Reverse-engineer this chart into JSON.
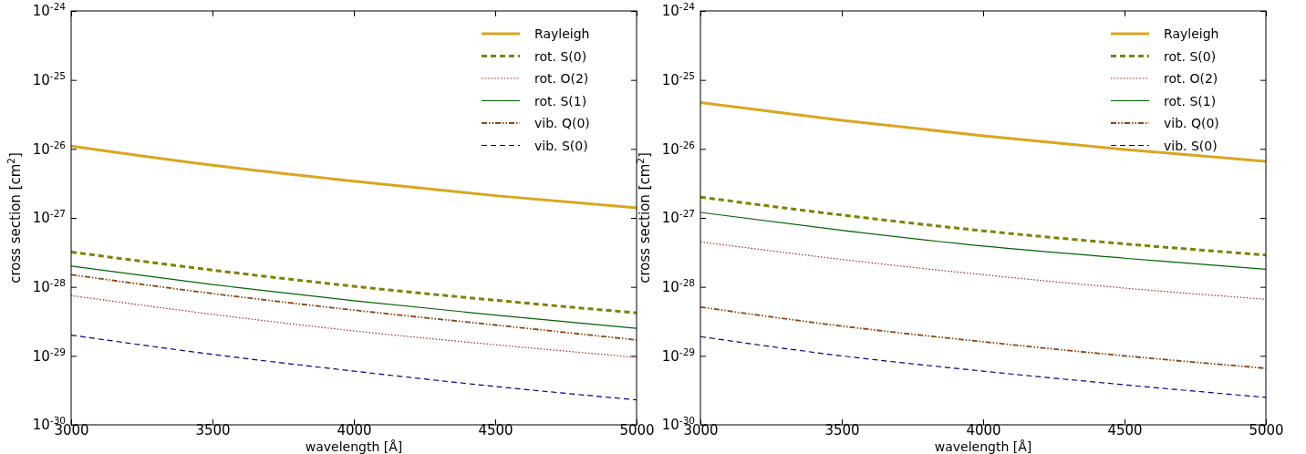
{
  "chart_data": [
    {
      "type": "line",
      "xlabel": "wavelength [Å]",
      "ylabel": "cross section [cm$^{2}$]",
      "log": "y",
      "legend": "top right",
      "xlim": [
        3000,
        5000
      ],
      "xticks": [
        3000,
        3500,
        4000,
        4500,
        5000
      ],
      "ylim": [
        1e-30,
        1e-24
      ],
      "yticks": [
        {
          "value": 1e-30,
          "label": "10$^{-30}$"
        },
        {
          "value": 1e-29,
          "label": "10$^{-29}$"
        },
        {
          "value": 1e-28,
          "label": "10$^{-28}$"
        },
        {
          "value": 1e-27,
          "label": "10$^{-27}$"
        },
        {
          "value": 1e-26,
          "label": "10$^{-26}$"
        },
        {
          "value": 1e-25,
          "label": "10$^{-25}$"
        },
        {
          "value": 1e-24,
          "label": "10$^{-24}$"
        }
      ],
      "x": [
        3000,
        3500,
        4000,
        4500,
        5000
      ],
      "series": [
        {
          "name": "Rayleigh",
          "color": "#daa520",
          "line_style": "solid",
          "values": [
            1.1e-26,
            5.8e-27,
            3.4e-27,
            2.1e-27,
            1.4e-27
          ]
        },
        {
          "name": "rot. S(0)",
          "color": "#808000",
          "line_style": "dashed",
          "values": [
            3.2e-28,
            1.75e-28,
            1.02e-28,
            6.4e-29,
            4.2e-29
          ]
        },
        {
          "name": "rot. O(2)",
          "color": "#a52a2a",
          "line_style": "dotted",
          "values": [
            7.5e-29,
            4e-29,
            2.3e-29,
            1.45e-29,
            9.5e-30
          ]
        },
        {
          "name": "rot. S(1)",
          "color": "#006400",
          "line_style": "solid",
          "values": [
            2e-28,
            1.08e-28,
            6.3e-29,
            3.9e-29,
            2.5e-29
          ]
        },
        {
          "name": "vib. Q(0)",
          "color": "#8b4513",
          "line_style": "dashdot",
          "values": [
            1.5e-28,
            8e-29,
            4.6e-29,
            2.8e-29,
            1.7e-29
          ]
        },
        {
          "name": "vib. S(0)",
          "color": "#00008b",
          "line_style": "dashed",
          "values": [
            2e-29,
            1.05e-29,
            6e-30,
            3.6e-30,
            2.3e-30
          ]
        }
      ]
    },
    {
      "type": "line",
      "xlabel": "wavelength [Å]",
      "ylabel": "cross section [cm$^{2}$]",
      "log": "y",
      "legend": "top right",
      "xlim": [
        3000,
        5000
      ],
      "xticks": [
        3000,
        3500,
        4000,
        4500,
        5000
      ],
      "ylim": [
        1e-30,
        1e-24
      ],
      "yticks": [
        {
          "value": 1e-30,
          "label": "10$^{-30}$"
        },
        {
          "value": 1e-29,
          "label": "10$^{-29}$"
        },
        {
          "value": 1e-28,
          "label": "10$^{-28}$"
        },
        {
          "value": 1e-27,
          "label": "10$^{-27}$"
        },
        {
          "value": 1e-26,
          "label": "10$^{-26}$"
        },
        {
          "value": 1e-25,
          "label": "10$^{-25}$"
        },
        {
          "value": 1e-24,
          "label": "10$^{-24}$"
        }
      ],
      "x": [
        3000,
        3500,
        4000,
        4500,
        5000
      ],
      "series": [
        {
          "name": "Rayleigh",
          "color": "#daa520",
          "line_style": "solid",
          "values": [
            4.7e-26,
            2.6e-26,
            1.55e-26,
            9.8e-27,
            6.6e-27
          ]
        },
        {
          "name": "rot. S(0)",
          "color": "#808000",
          "line_style": "dashed",
          "values": [
            2e-27,
            1.1e-27,
            6.5e-28,
            4.2e-28,
            2.9e-28
          ]
        },
        {
          "name": "rot. O(2)",
          "color": "#a52a2a",
          "line_style": "dotted",
          "values": [
            4.5e-28,
            2.5e-28,
            1.5e-28,
            9.6e-29,
            6.6e-29
          ]
        },
        {
          "name": "rot. S(1)",
          "color": "#006400",
          "line_style": "solid",
          "values": [
            1.2e-27,
            6.6e-28,
            3.9e-28,
            2.6e-28,
            1.8e-28
          ]
        },
        {
          "name": "vib. Q(0)",
          "color": "#8b4513",
          "line_style": "dashdot",
          "values": [
            5.1e-29,
            2.7e-29,
            1.6e-29,
            1e-29,
            6.6e-30
          ]
        },
        {
          "name": "vib. S(0)",
          "color": "#00008b",
          "line_style": "dashed",
          "values": [
            1.9e-29,
            1e-29,
            6e-30,
            3.8e-30,
            2.5e-30
          ]
        }
      ]
    }
  ]
}
